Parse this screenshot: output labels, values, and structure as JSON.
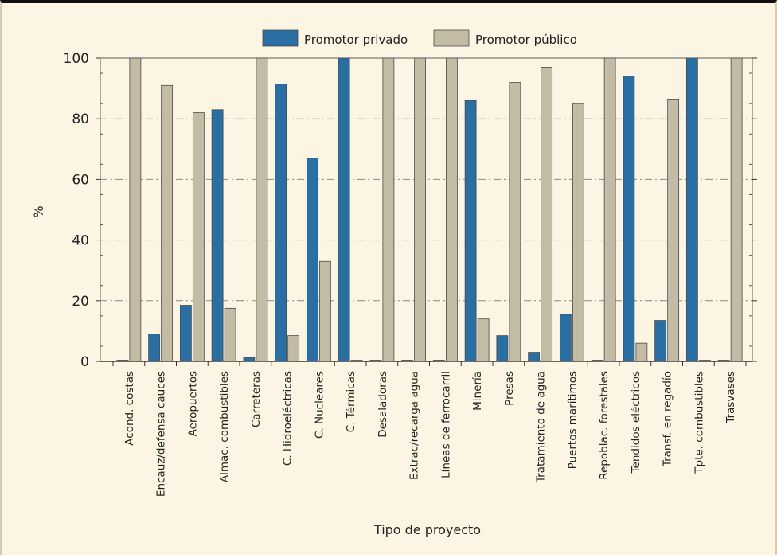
{
  "chart_data": {
    "type": "bar",
    "title": "",
    "xlabel": "Tipo de proyecto",
    "ylabel": "%",
    "ylim": [
      0,
      100
    ],
    "yticks": [
      0,
      20,
      40,
      60,
      80,
      100
    ],
    "grid": true,
    "legend_position": "top-center",
    "categories": [
      "Acond. costas",
      "Encauz/defensa cauces",
      "Aeropuertos",
      "Almac. combustibles",
      "Carreteras",
      "C. Hidroeléctricas",
      "C. Nucleares",
      "C. Térmicas",
      "Desaladoras",
      "Extrac/recarga agua",
      "Líneas de ferrocarril",
      "Minería",
      "Presas",
      "Tratamiento de agua",
      "Puertos marítimos",
      "Repoblac. forestales",
      "Tendidos eléctricos",
      "Transf. en regadío",
      "Tpte. combustibles",
      "Trasvases"
    ],
    "series": [
      {
        "name": "Promotor privado",
        "color": "#2a6fa3",
        "values": [
          0,
          9,
          18.5,
          83,
          1.3,
          91.5,
          67,
          100,
          0,
          0,
          0,
          86,
          8.5,
          3,
          15.5,
          0,
          94,
          13.5,
          100,
          0
        ]
      },
      {
        "name": "Promotor público",
        "color": "#c4bba4",
        "values": [
          100,
          91,
          82,
          17.5,
          100,
          8.5,
          33,
          0,
          100,
          100,
          100,
          14,
          92,
          97,
          85,
          100,
          6,
          86.5,
          0,
          100
        ]
      }
    ]
  }
}
